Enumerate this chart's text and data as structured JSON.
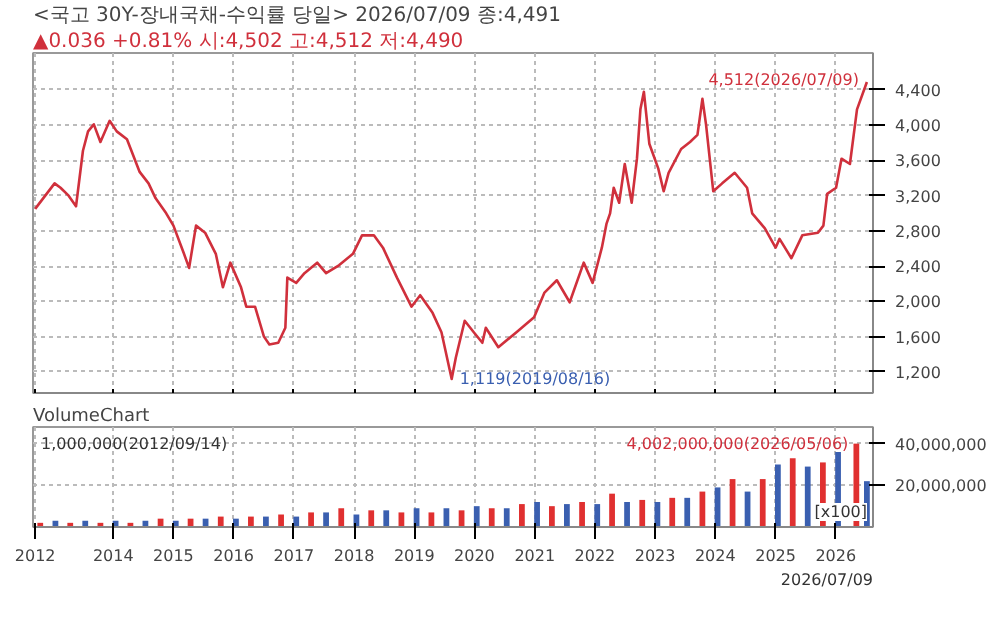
{
  "chart_data": [
    {
      "type": "line",
      "title": "<국고 30Y-장내국채-수익률 당일> 2026/07/09 종:4,491",
      "subtitle": "▲0.036 +0.81%  시:4,502 고:4,512 저:4,490",
      "x": [
        "2012-09-14",
        "2013-01-10",
        "2013-02-15",
        "2013-04-05",
        "2013-05-20",
        "2013-07-01",
        "2013-08-01",
        "2013-09-05",
        "2013-10-15",
        "2013-12-10",
        "2014-01-22",
        "2014-03-25",
        "2014-06-10",
        "2014-08-03",
        "2014-09-15",
        "2014-11-18",
        "2015-01-01",
        "2015-03-06",
        "2015-04-06",
        "2015-05-18",
        "2015-07-12",
        "2015-09-15",
        "2015-10-28",
        "2015-12-12",
        "2016-02-15",
        "2016-03-18",
        "2016-05-10",
        "2016-07-03",
        "2016-08-05",
        "2016-09-28",
        "2016-11-10",
        "2016-11-22",
        "2017-01-15",
        "2017-03-06",
        "2017-05-22",
        "2017-07-15",
        "2017-10-01",
        "2017-12-25",
        "2018-02-18",
        "2018-05-01",
        "2018-06-25",
        "2018-09-18",
        "2018-12-15",
        "2019-02-06",
        "2019-04-22",
        "2019-06-15",
        "2019-08-16",
        "2019-09-10",
        "2019-11-03",
        "2019-12-28",
        "2020-02-18",
        "2020-03-10",
        "2020-05-25",
        "2020-09-12",
        "2020-12-28",
        "2021-03-01",
        "2021-05-15",
        "2021-08-01",
        "2021-10-25",
        "2021-12-18",
        "2022-02-12",
        "2022-03-12",
        "2022-04-03",
        "2022-04-25",
        "2022-05-28",
        "2022-07-01",
        "2022-08-12",
        "2022-09-13",
        "2022-10-04",
        "2022-10-25",
        "2022-11-27",
        "2023-01-20",
        "2023-02-22",
        "2023-03-24",
        "2023-06-08",
        "2023-08-01",
        "2023-09-15",
        "2023-10-15",
        "2023-11-06",
        "2023-12-20",
        "2024-02-12",
        "2024-04-28",
        "2024-07-12",
        "2024-08-12",
        "2024-10-28",
        "2025-01-01",
        "2025-01-25",
        "2025-04-07",
        "2025-06-12",
        "2025-09-15",
        "2025-10-18",
        "2025-11-10",
        "2026-01-03",
        "2026-02-05",
        "2026-03-28",
        "2026-05-10",
        "2026-07-09"
      ],
      "series": [
        {
          "color": "#d0303c",
          "values": [
            3050,
            3340,
            3290,
            3200,
            3080,
            3710,
            3930,
            4010,
            3810,
            4050,
            3930,
            3840,
            3470,
            3340,
            3170,
            3000,
            2860,
            2540,
            2380,
            2860,
            2780,
            2540,
            2160,
            2440,
            2160,
            1940,
            1940,
            1600,
            1510,
            1530,
            1700,
            2270,
            2210,
            2320,
            2440,
            2320,
            2410,
            2540,
            2750,
            2750,
            2610,
            2270,
            1940,
            2070,
            1870,
            1650,
            1119,
            1360,
            1780,
            1650,
            1530,
            1700,
            1480,
            1650,
            1820,
            2100,
            2240,
            1990,
            2440,
            2210,
            2610,
            2880,
            3000,
            3290,
            3120,
            3560,
            3120,
            3620,
            4180,
            4380,
            3790,
            3510,
            3250,
            3460,
            3730,
            3810,
            3890,
            4300,
            4010,
            3250,
            3340,
            3460,
            3290,
            3000,
            2830,
            2610,
            2710,
            2490,
            2750,
            2780,
            2860,
            3220,
            3290,
            3620,
            3560,
            4180,
            4490
          ]
        }
      ],
      "xlim": [
        "2012-09-01",
        "2026-08-15"
      ],
      "xticks": [
        {
          "value": "2012-09-14",
          "label": null
        },
        {
          "value": "2014-01-01",
          "label": null
        },
        {
          "value": "2015-01-01",
          "label": null
        },
        {
          "value": "2016-01-01",
          "label": null
        },
        {
          "value": "2017-01-01",
          "label": null
        },
        {
          "value": "2018-01-01",
          "label": null
        },
        {
          "value": "2019-01-01",
          "label": null
        },
        {
          "value": "2020-01-01",
          "label": null
        },
        {
          "value": "2021-01-01",
          "label": null
        },
        {
          "value": "2022-01-01",
          "label": null
        },
        {
          "value": "2023-01-01",
          "label": null
        },
        {
          "value": "2024-01-01",
          "label": null
        },
        {
          "value": "2025-01-01",
          "label": null
        },
        {
          "value": "2026-01-01",
          "label": null
        }
      ],
      "ylim": [
        960,
        4820
      ],
      "yticks": [
        {
          "value": 1200,
          "label": "1,200"
        },
        {
          "value": 1600,
          "label": "1,600"
        },
        {
          "value": 2000,
          "label": "2,000"
        },
        {
          "value": 2400,
          "label": "2,400"
        },
        {
          "value": 2800,
          "label": "2,800"
        },
        {
          "value": 3200,
          "label": "3,200"
        },
        {
          "value": 3600,
          "label": "3,600"
        },
        {
          "value": 4000,
          "label": "4,000"
        },
        {
          "value": 4400,
          "label": "4,400"
        }
      ],
      "tick_labels": "y",
      "grid": true,
      "annotations": [
        {
          "text": "4,512(2026/07/09)",
          "x": "2026-07-09",
          "y": 4512
        },
        {
          "text": "1,119(2019/08/16)",
          "x": "2019-08-16",
          "y": 1119
        }
      ]
    },
    {
      "type": "bar",
      "title": "VolumeChart",
      "x": [
        "2012-10-15",
        "2013-01-15",
        "2013-04-15",
        "2013-07-15",
        "2013-10-15",
        "2014-01-15",
        "2014-04-15",
        "2014-07-15",
        "2014-10-15",
        "2015-01-15",
        "2015-04-15",
        "2015-07-15",
        "2015-10-15",
        "2016-01-15",
        "2016-04-15",
        "2016-07-15",
        "2016-10-15",
        "2017-01-15",
        "2017-04-15",
        "2017-07-15",
        "2017-10-15",
        "2018-01-15",
        "2018-04-15",
        "2018-07-15",
        "2018-10-15",
        "2019-01-15",
        "2019-04-15",
        "2019-07-15",
        "2019-10-15",
        "2020-01-15",
        "2020-04-15",
        "2020-07-15",
        "2020-10-15",
        "2021-01-15",
        "2021-04-15",
        "2021-07-15",
        "2021-10-15",
        "2022-01-15",
        "2022-04-15",
        "2022-07-15",
        "2022-10-15",
        "2023-01-15",
        "2023-04-15",
        "2023-07-15",
        "2023-10-15",
        "2024-01-15",
        "2024-04-15",
        "2024-07-15",
        "2024-10-15",
        "2025-01-15",
        "2025-04-15",
        "2025-07-15",
        "2025-10-15",
        "2026-01-15",
        "2026-05-06",
        "2026-07-09"
      ],
      "values": [
        2000000,
        3000000,
        2000000,
        3000000,
        2000000,
        3000000,
        2000000,
        3000000,
        4000000,
        3000000,
        4000000,
        4000000,
        5000000,
        4000000,
        5000000,
        5000000,
        6000000,
        5000000,
        7000000,
        7000000,
        9000000,
        6000000,
        8000000,
        8000000,
        7000000,
        9000000,
        7000000,
        9000000,
        8000000,
        10000000,
        9000000,
        9000000,
        11000000,
        12000000,
        10000000,
        11000000,
        12000000,
        11000000,
        16000000,
        12000000,
        13000000,
        12000000,
        14000000,
        14000000,
        17000000,
        19000000,
        23000000,
        17000000,
        23000000,
        30000000,
        33000000,
        29000000,
        31000000,
        36000000,
        40020000,
        22000000
      ],
      "colors": [
        "#e03030",
        "#3a5fb0",
        "#e03030",
        "#3a5fb0",
        "#e03030",
        "#3a5fb0",
        "#e03030",
        "#3a5fb0",
        "#e03030",
        "#3a5fb0",
        "#e03030",
        "#3a5fb0",
        "#e03030",
        "#3a5fb0",
        "#e03030",
        "#3a5fb0",
        "#e03030",
        "#3a5fb0",
        "#e03030",
        "#3a5fb0",
        "#e03030",
        "#3a5fb0",
        "#e03030",
        "#3a5fb0",
        "#e03030",
        "#3a5fb0",
        "#e03030",
        "#3a5fb0",
        "#e03030",
        "#3a5fb0",
        "#e03030",
        "#3a5fb0",
        "#e03030",
        "#3a5fb0",
        "#e03030",
        "#3a5fb0",
        "#e03030",
        "#3a5fb0",
        "#e03030",
        "#3a5fb0",
        "#e03030",
        "#3a5fb0",
        "#e03030",
        "#3a5fb0",
        "#e03030",
        "#3a5fb0",
        "#e03030",
        "#3a5fb0",
        "#e03030",
        "#3a5fb0",
        "#e03030",
        "#3a5fb0",
        "#e03030",
        "#3a5fb0",
        "#e03030",
        "#3a5fb0"
      ],
      "xlim": [
        "2012-09-01",
        "2026-08-15"
      ],
      "xticks": [
        {
          "value": "2012-09-14",
          "label": "2012"
        },
        {
          "value": "2014-01-01",
          "label": "2014"
        },
        {
          "value": "2015-01-01",
          "label": "2015"
        },
        {
          "value": "2016-01-01",
          "label": "2016"
        },
        {
          "value": "2017-01-01",
          "label": "2017"
        },
        {
          "value": "2018-01-01",
          "label": "2018"
        },
        {
          "value": "2019-01-01",
          "label": "2019"
        },
        {
          "value": "2020-01-01",
          "label": "2020"
        },
        {
          "value": "2021-01-01",
          "label": "2021"
        },
        {
          "value": "2022-01-01",
          "label": "2022"
        },
        {
          "value": "2023-01-01",
          "label": "2023"
        },
        {
          "value": "2024-01-01",
          "label": "2024"
        },
        {
          "value": "2025-01-01",
          "label": "2025"
        },
        {
          "value": "2026-01-01",
          "label": "2026"
        }
      ],
      "ylim": [
        0,
        48000000
      ],
      "yticks": [
        {
          "value": 20000000,
          "label": "20,000,000"
        },
        {
          "value": 40000000,
          "label": "40,000,000"
        }
      ],
      "grid": true,
      "annotations": [
        {
          "text": "4,002,000,000(2026/05/06)",
          "x": "2026-05-06",
          "y": 40020000
        },
        "1,000,000(2012/09/14)",
        "[x100]",
        "2026/07/09"
      ]
    }
  ]
}
